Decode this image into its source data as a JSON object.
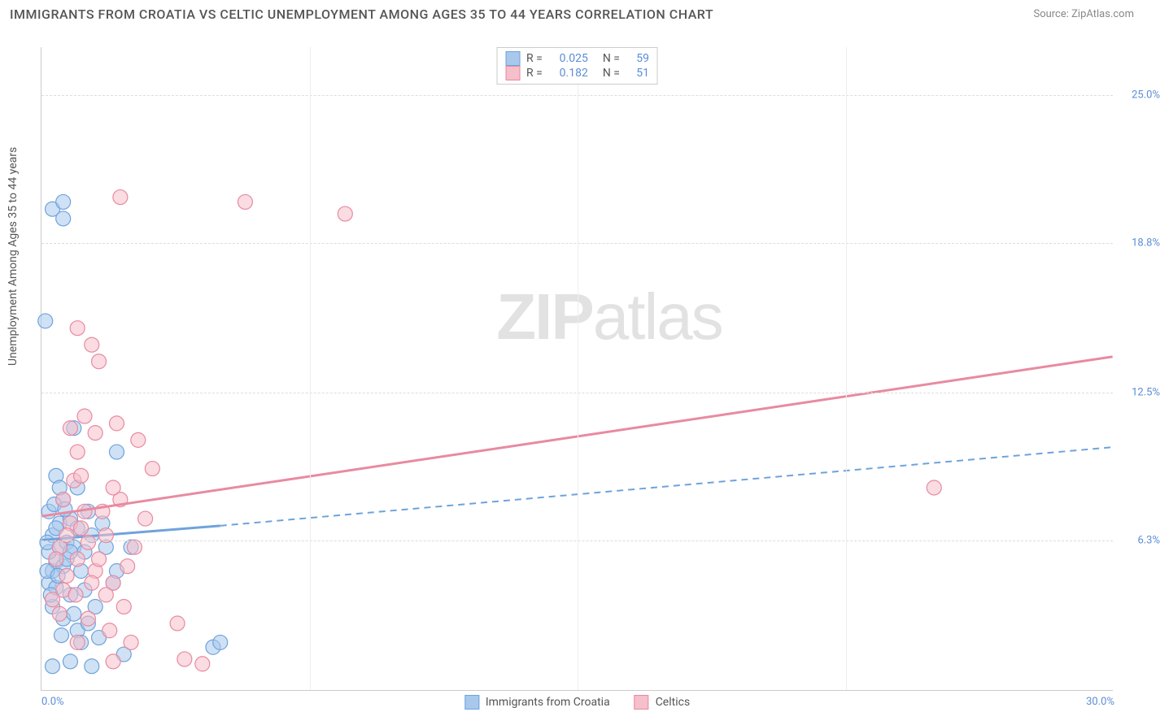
{
  "header": {
    "title": "IMMIGRANTS FROM CROATIA VS CELTIC UNEMPLOYMENT AMONG AGES 35 TO 44 YEARS CORRELATION CHART",
    "source": "Source: ZipAtlas.com"
  },
  "watermark": {
    "bold": "ZIP",
    "light": "atlas"
  },
  "chart": {
    "type": "scatter",
    "ylabel": "Unemployment Among Ages 35 to 44 years",
    "xrange": [
      0,
      30
    ],
    "yrange": [
      0,
      27
    ],
    "xticks": [
      {
        "v": 0,
        "label": "0.0%",
        "pos": "left"
      },
      {
        "v": 30,
        "label": "30.0%",
        "pos": "right"
      }
    ],
    "xgrid_minor": [
      7.5,
      15,
      22.5
    ],
    "yticks": [
      {
        "v": 6.3,
        "label": "6.3%"
      },
      {
        "v": 12.5,
        "label": "12.5%"
      },
      {
        "v": 18.8,
        "label": "18.8%"
      },
      {
        "v": 25.0,
        "label": "25.0%"
      }
    ],
    "background_color": "#ffffff",
    "grid_color": "#dddddd",
    "marker_radius": 9,
    "marker_opacity": 0.55,
    "series": [
      {
        "name": "Immigrants from Croatia",
        "color_fill": "#a8c8ec",
        "color_stroke": "#6fa3db",
        "R": "0.025",
        "N": "59",
        "points": [
          [
            0.3,
            20.2
          ],
          [
            0.6,
            20.5
          ],
          [
            0.6,
            19.8
          ],
          [
            0.1,
            15.5
          ],
          [
            0.2,
            4.5
          ],
          [
            0.3,
            5.0
          ],
          [
            0.4,
            5.4
          ],
          [
            0.2,
            5.8
          ],
          [
            0.5,
            6.0
          ],
          [
            0.3,
            6.5
          ],
          [
            0.7,
            6.2
          ],
          [
            0.6,
            5.2
          ],
          [
            0.4,
            4.3
          ],
          [
            0.8,
            4.0
          ],
          [
            0.3,
            3.5
          ],
          [
            0.6,
            3.0
          ],
          [
            1.0,
            2.5
          ],
          [
            1.3,
            2.8
          ],
          [
            0.9,
            6.0
          ],
          [
            1.1,
            5.0
          ],
          [
            1.2,
            4.2
          ],
          [
            0.5,
            7.0
          ],
          [
            0.8,
            7.2
          ],
          [
            0.2,
            7.5
          ],
          [
            0.6,
            8.0
          ],
          [
            0.4,
            9.0
          ],
          [
            1.0,
            8.5
          ],
          [
            1.4,
            6.5
          ],
          [
            1.2,
            5.8
          ],
          [
            1.5,
            3.5
          ],
          [
            1.8,
            6.0
          ],
          [
            0.3,
            1.0
          ],
          [
            0.8,
            1.2
          ],
          [
            1.4,
            1.0
          ],
          [
            1.1,
            2.0
          ],
          [
            1.6,
            2.2
          ],
          [
            2.0,
            4.5
          ],
          [
            2.1,
            5.0
          ],
          [
            2.3,
            1.5
          ],
          [
            2.5,
            6.0
          ],
          [
            2.1,
            10.0
          ],
          [
            0.9,
            11.0
          ],
          [
            4.8,
            1.8
          ],
          [
            5.0,
            2.0
          ],
          [
            1.0,
            6.8
          ],
          [
            0.7,
            5.5
          ],
          [
            0.4,
            6.8
          ],
          [
            0.15,
            6.2
          ],
          [
            0.25,
            4.0
          ],
          [
            0.5,
            8.5
          ],
          [
            0.35,
            7.8
          ],
          [
            0.9,
            3.2
          ],
          [
            1.3,
            7.5
          ],
          [
            0.55,
            2.3
          ],
          [
            1.7,
            7.0
          ],
          [
            0.15,
            5.0
          ],
          [
            0.8,
            5.8
          ],
          [
            0.45,
            4.8
          ],
          [
            0.65,
            7.6
          ]
        ],
        "trend": {
          "x1": 0,
          "y1": 6.3,
          "x2": 5,
          "y2": 6.9,
          "dash_x2": 30,
          "dash_y2": 10.2
        }
      },
      {
        "name": "Celtics",
        "color_fill": "#f5bfcb",
        "color_stroke": "#e88aa0",
        "R": "0.182",
        "N": "51",
        "points": [
          [
            2.2,
            20.7
          ],
          [
            5.7,
            20.5
          ],
          [
            8.5,
            20.0
          ],
          [
            1.0,
            15.2
          ],
          [
            1.4,
            14.5
          ],
          [
            1.6,
            13.8
          ],
          [
            1.2,
            11.5
          ],
          [
            0.8,
            11.0
          ],
          [
            1.5,
            10.8
          ],
          [
            2.7,
            10.5
          ],
          [
            1.0,
            10.0
          ],
          [
            3.1,
            9.3
          ],
          [
            2.2,
            8.0
          ],
          [
            2.0,
            8.5
          ],
          [
            0.6,
            8.0
          ],
          [
            1.2,
            7.5
          ],
          [
            0.8,
            7.0
          ],
          [
            1.8,
            6.5
          ],
          [
            1.0,
            5.5
          ],
          [
            1.5,
            5.0
          ],
          [
            0.7,
            4.8
          ],
          [
            2.0,
            4.5
          ],
          [
            2.3,
            3.5
          ],
          [
            1.6,
            5.5
          ],
          [
            0.5,
            6.0
          ],
          [
            1.3,
            3.0
          ],
          [
            1.9,
            2.5
          ],
          [
            1.0,
            2.0
          ],
          [
            2.5,
            2.0
          ],
          [
            3.8,
            2.8
          ],
          [
            4.0,
            1.3
          ],
          [
            4.5,
            1.1
          ],
          [
            2.0,
            1.2
          ],
          [
            25.0,
            8.5
          ],
          [
            0.3,
            3.8
          ],
          [
            0.6,
            4.2
          ],
          [
            0.4,
            5.5
          ],
          [
            1.1,
            6.8
          ],
          [
            1.7,
            7.5
          ],
          [
            0.9,
            8.8
          ],
          [
            2.6,
            6.0
          ],
          [
            1.4,
            4.5
          ],
          [
            0.5,
            3.2
          ],
          [
            1.8,
            4.0
          ],
          [
            2.4,
            5.2
          ],
          [
            1.1,
            9.0
          ],
          [
            0.7,
            6.5
          ],
          [
            2.9,
            7.2
          ],
          [
            1.3,
            6.2
          ],
          [
            0.95,
            4.0
          ],
          [
            2.1,
            11.2
          ]
        ],
        "trend": {
          "x1": 0,
          "y1": 7.3,
          "x2": 30,
          "y2": 14.0
        }
      }
    ],
    "bottom_legend": [
      {
        "label": "Immigrants from Croatia",
        "fill": "#a8c8ec",
        "stroke": "#6fa3db"
      },
      {
        "label": "Celtics",
        "fill": "#f5bfcb",
        "stroke": "#e88aa0"
      }
    ]
  }
}
